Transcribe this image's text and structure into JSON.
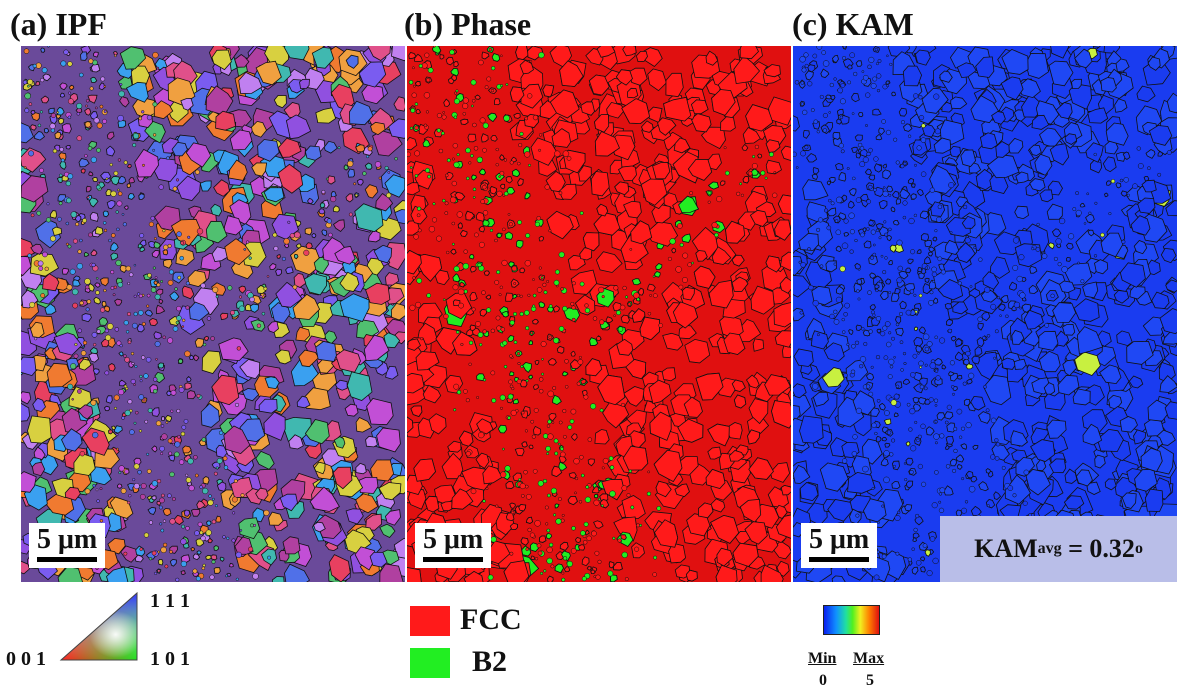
{
  "panels": [
    {
      "title": "(a) IPF",
      "scale_label": "5 μm"
    },
    {
      "title": "(b) Phase",
      "scale_label": "5 μm"
    },
    {
      "title": "(c) KAM",
      "scale_label": "5 μm",
      "kam_avg": {
        "prefix": "KAM",
        "sub": "avg",
        "value": "= 0.32",
        "sup": "o"
      }
    }
  ],
  "ipf_legend": {
    "corner_111": "1 1 1",
    "corner_001": "0 0 1",
    "corner_101": "1 0 1"
  },
  "phase_legend": [
    {
      "label": "FCC",
      "color": "#ff1a1a"
    },
    {
      "label": "B2",
      "color": "#22ee22"
    }
  ],
  "kam_legend": {
    "min_label": "Min",
    "max_label": "Max",
    "min_value": "0",
    "max_value": "5"
  },
  "colors": {
    "kam_background": "#1a3cf0",
    "kam_box": "#b9bee8",
    "grain_boundary": "#111111"
  }
}
